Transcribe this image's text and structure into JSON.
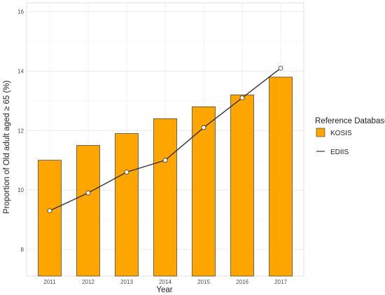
{
  "chart_data": {
    "type": "bar",
    "categories": [
      "2011",
      "2012",
      "2013",
      "2014",
      "2015",
      "2016",
      "2017"
    ],
    "series": [
      {
        "name": "KOSIS",
        "kind": "bar",
        "values": [
          11.0,
          11.5,
          11.9,
          12.4,
          12.8,
          13.2,
          13.8
        ],
        "color": "#FFA500"
      },
      {
        "name": "EDIIS",
        "kind": "line",
        "values": [
          9.3,
          9.9,
          10.6,
          11.0,
          12.1,
          13.1,
          14.1
        ],
        "color": "#333333"
      }
    ],
    "xlabel": "Year",
    "ylabel": "Proportion of Old adult aged ≥ 65 (%)",
    "ylim": [
      7.1,
      16.3
    ],
    "yticks": [
      "8",
      "10",
      "12",
      "14",
      "16"
    ],
    "grid": true,
    "legend": {
      "title": "Reference Database",
      "placement": "right"
    }
  }
}
